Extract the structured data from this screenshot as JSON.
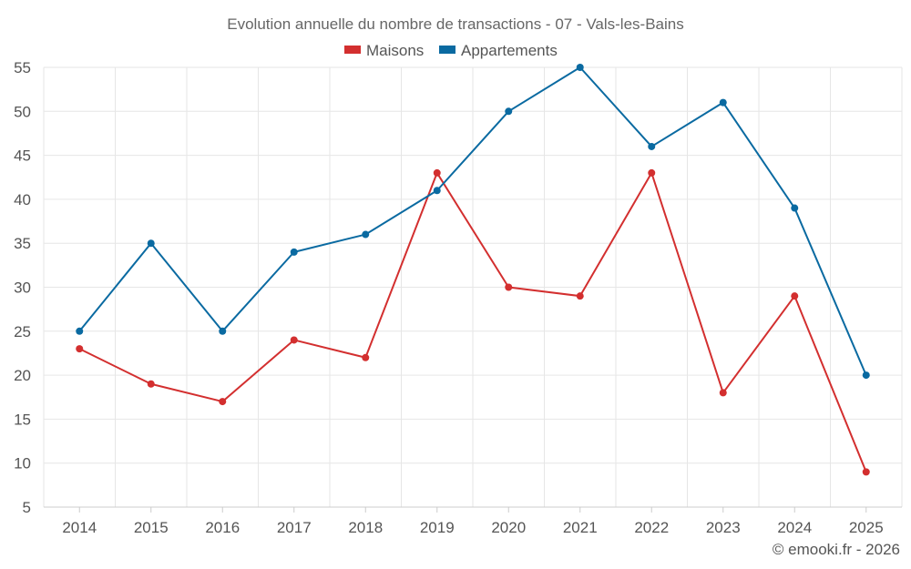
{
  "chart_data": {
    "type": "line",
    "title": "Evolution annuelle du nombre de transactions - 07 - Vals-les-Bains",
    "categories": [
      "2014",
      "2015",
      "2016",
      "2017",
      "2018",
      "2019",
      "2020",
      "2021",
      "2022",
      "2023",
      "2024",
      "2025"
    ],
    "series": [
      {
        "name": "Maisons",
        "color": "#d32f2f",
        "values": [
          23,
          19,
          17,
          24,
          22,
          43,
          30,
          29,
          43,
          18,
          29,
          9
        ]
      },
      {
        "name": "Appartements",
        "color": "#0a6aa1",
        "values": [
          25,
          35,
          25,
          34,
          36,
          41,
          50,
          55,
          46,
          51,
          39,
          20
        ]
      }
    ],
    "y_ticks": [
      5,
      10,
      15,
      20,
      25,
      30,
      35,
      40,
      45,
      50,
      55
    ],
    "ylim": [
      5,
      55
    ],
    "grid": true,
    "legend_position": "top-center",
    "xlabel": "",
    "ylabel": ""
  },
  "credit": "© emooki.fr - 2026"
}
